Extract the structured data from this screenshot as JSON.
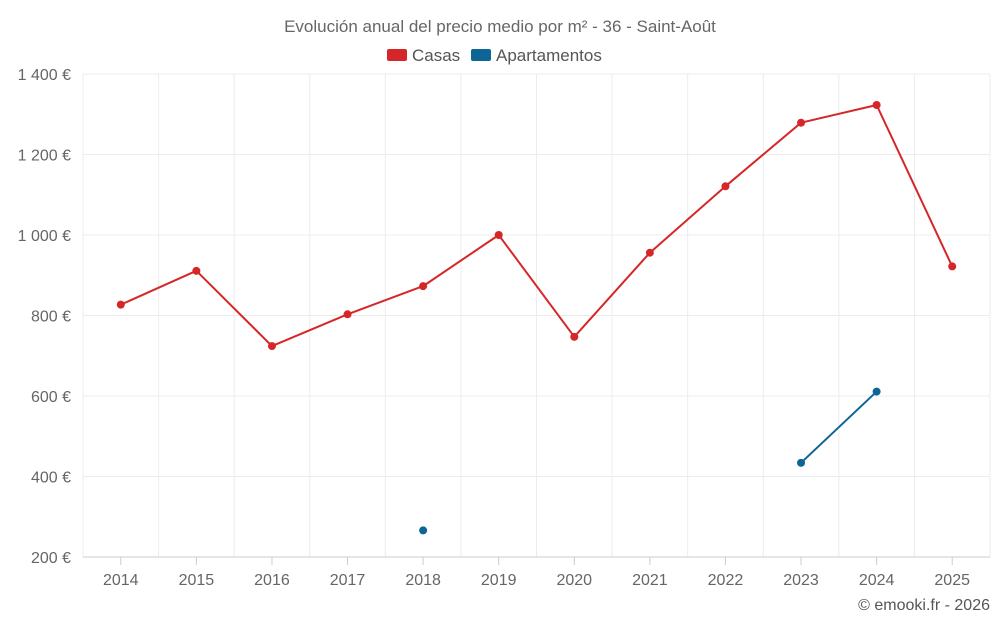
{
  "chart_data": {
    "type": "line",
    "title": "Evolución anual del precio medio por m² - 36 - Saint-Août",
    "categories": [
      "2014",
      "2015",
      "2016",
      "2017",
      "2018",
      "2019",
      "2020",
      "2021",
      "2022",
      "2023",
      "2024",
      "2025"
    ],
    "series": [
      {
        "name": "Casas",
        "color": "#d62728",
        "values": [
          827,
          911,
          724,
          803,
          873,
          1000,
          747,
          956,
          1121,
          1279,
          1323,
          922
        ]
      },
      {
        "name": "Apartamentos",
        "color": "#0f6496",
        "values": [
          null,
          null,
          null,
          null,
          266,
          null,
          null,
          null,
          null,
          434,
          611,
          null
        ]
      }
    ],
    "yticks": [
      200,
      400,
      600,
      800,
      1000,
      1200,
      1400
    ],
    "ytick_labels": [
      "200 €",
      "400 €",
      "600 €",
      "800 €",
      "1 000 €",
      "1 200 €",
      "1 400 €"
    ],
    "ylim": [
      200,
      1400
    ],
    "xlabel": "",
    "ylabel": "",
    "legend_position": "top-center",
    "grid": true
  },
  "credit": "© emooki.fr - 2026"
}
